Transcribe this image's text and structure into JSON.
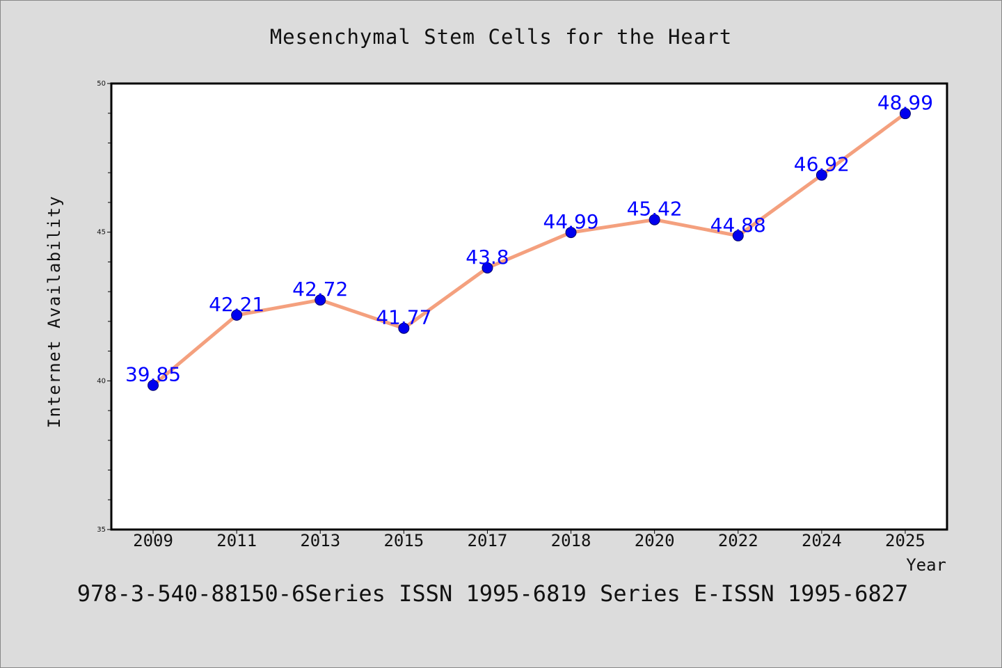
{
  "chart_data": {
    "type": "line",
    "title": "Mesenchymal Stem Cells for the Heart",
    "xlabel": "Year",
    "ylabel": "Internet Availability",
    "categories": [
      "2009",
      "2011",
      "2013",
      "2015",
      "2017",
      "2018",
      "2020",
      "2022",
      "2024",
      "2025"
    ],
    "series": [
      {
        "values": [
          39.85,
          42.21,
          42.72,
          41.77,
          43.8,
          44.99,
          45.42,
          44.88,
          46.92,
          48.99
        ],
        "labels": [
          "39.85",
          "42.21",
          "42.72",
          "41.77",
          "43.8",
          "44.99",
          "45.42",
          "44.88",
          "46.92",
          "48.99"
        ]
      }
    ],
    "ylim": [
      35,
      50
    ],
    "yticks": [
      "35",
      "40",
      "45",
      "50"
    ],
    "grid": false,
    "line_color": "#f4a07e",
    "marker_color": "#0000ee",
    "label_color": "#0000ff",
    "background": "#dcdcdc",
    "plot_background": "#ffffff"
  },
  "footer": {
    "text": "978-3-540-88150-6Series ISSN 1995-6819 Series E-ISSN 1995-6827"
  }
}
